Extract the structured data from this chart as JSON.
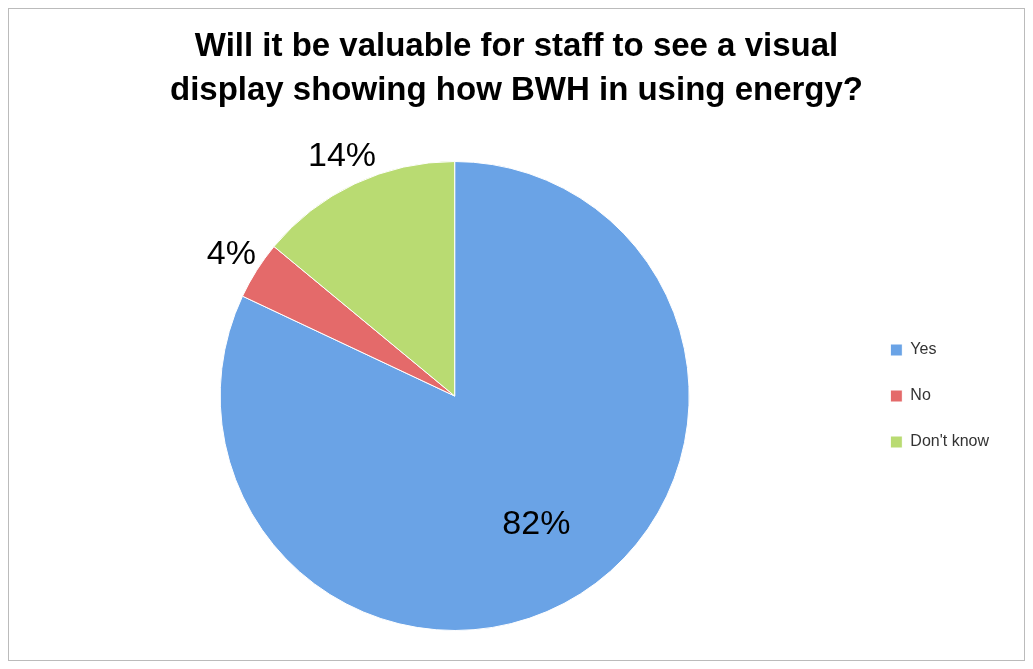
{
  "chart_data": {
    "type": "pie",
    "title": "Will it be valuable for staff to see a visual display showing how BWH in using energy?",
    "categories": [
      "Yes",
      "No",
      "Don't know"
    ],
    "values": [
      82,
      4,
      14
    ],
    "colors": [
      "#6aa3e6",
      "#e46a6a",
      "#b9db72"
    ],
    "value_labels": [
      "82%",
      "4%",
      "14%"
    ],
    "legend": "right"
  }
}
